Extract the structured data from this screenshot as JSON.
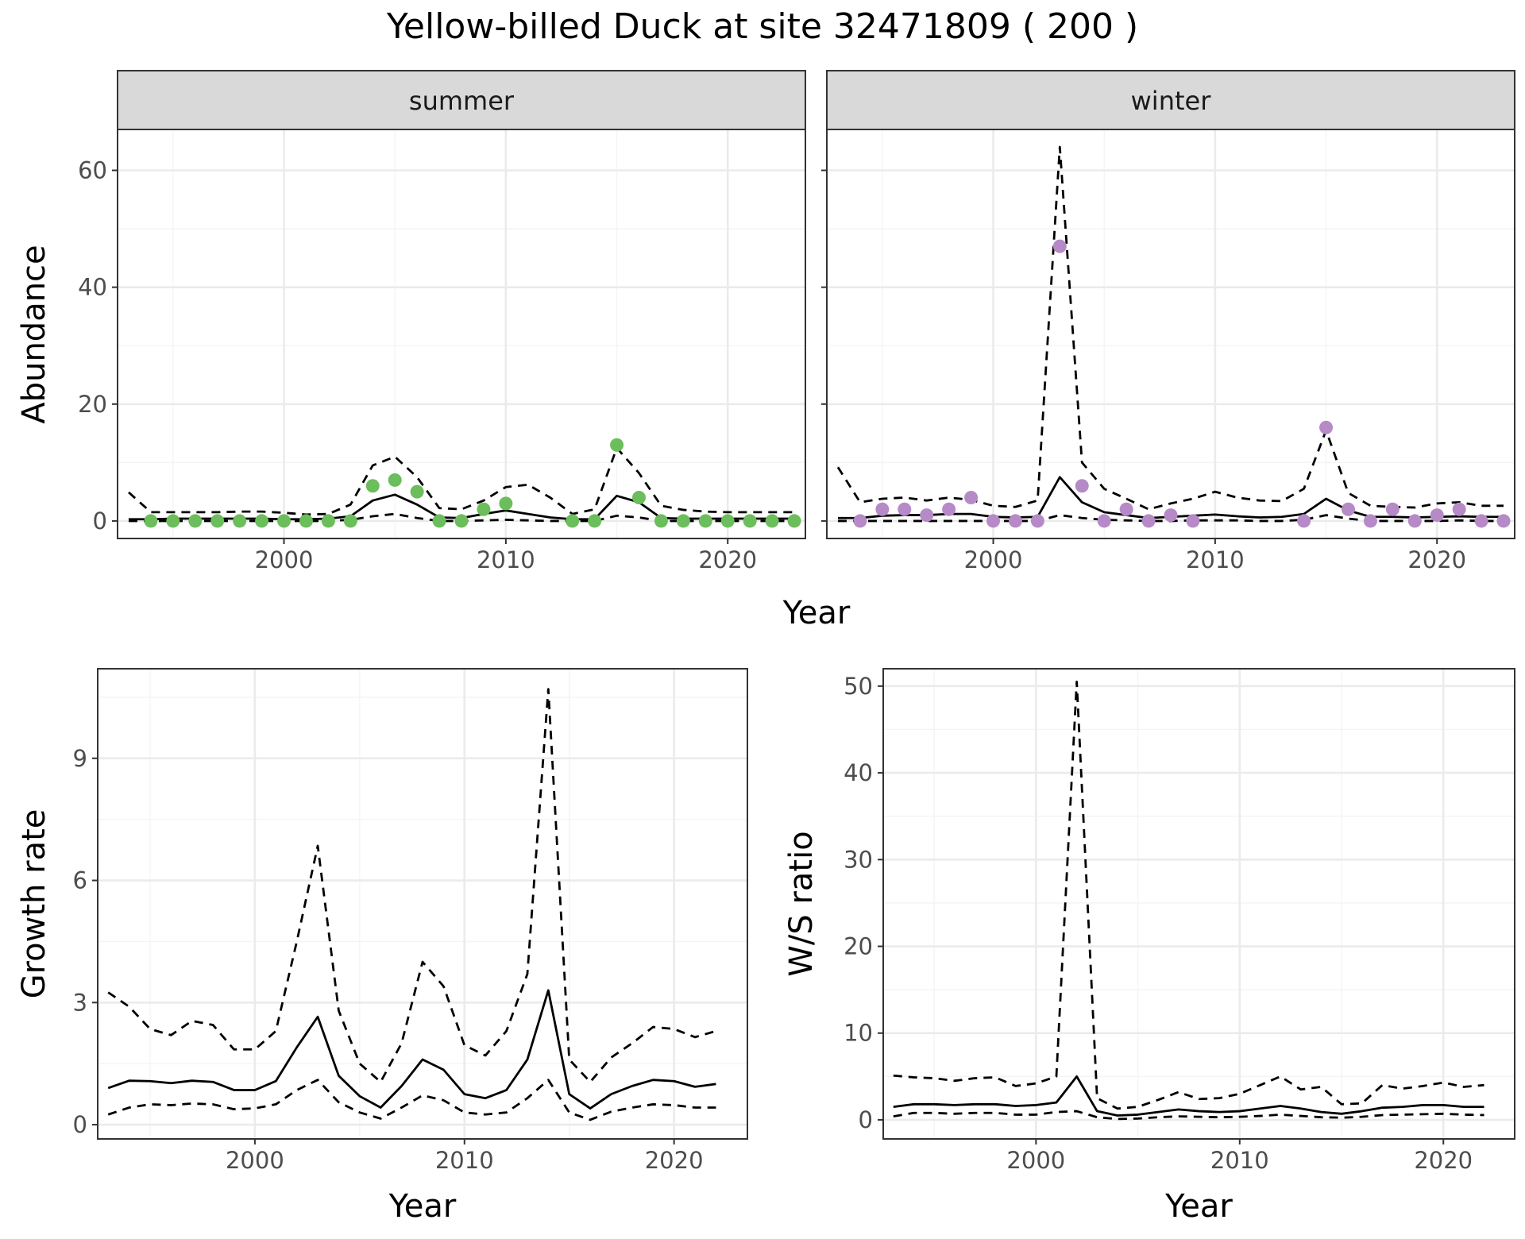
{
  "figure": {
    "title": "Yellow-billed Duck at site 32471809 ( 200 )",
    "colors": {
      "summer_points": "#6cbd5c",
      "winter_points": "#b58ac6",
      "lines": "#000000",
      "strip_fill": "#d9d9d9",
      "grid_major": "#ebebeb",
      "grid_minor": "#f4f4f4"
    }
  },
  "chart_data": [
    {
      "id": "abundance",
      "type": "line",
      "facets": [
        "summer",
        "winter"
      ],
      "xlabel": "Year",
      "ylabel": "Abundance",
      "xlim": [
        1992.5,
        2023.5
      ],
      "ylim": [
        -3,
        67
      ],
      "xticks": [
        2000,
        2010,
        2020
      ],
      "yticks": [
        0,
        20,
        40,
        60
      ],
      "grid": true,
      "panels": [
        {
          "facet": "summer",
          "observed": {
            "x": [
              1994,
              1995,
              1996,
              1997,
              1998,
              1999,
              2000,
              2001,
              2002,
              2003,
              2004,
              2005,
              2006,
              2007,
              2008,
              2009,
              2010,
              2013,
              2014,
              2015,
              2016,
              2017,
              2018,
              2019,
              2020,
              2021,
              2022,
              2023
            ],
            "y": [
              0,
              0,
              0,
              0,
              0,
              0,
              0,
              0,
              0,
              0,
              6,
              7,
              5,
              0,
              0,
              2,
              3,
              0,
              0,
              13,
              4,
              0,
              0,
              0,
              0,
              0,
              0,
              0
            ]
          },
          "estimate": {
            "x": [
              1993,
              1994,
              1995,
              1996,
              1997,
              1998,
              1999,
              2000,
              2001,
              2002,
              2003,
              2004,
              2005,
              2006,
              2007,
              2008,
              2009,
              2010,
              2011,
              2012,
              2013,
              2014,
              2015,
              2016,
              2017,
              2018,
              2019,
              2020,
              2021,
              2022,
              2023
            ],
            "y": [
              0.3,
              0.3,
              0.4,
              0.4,
              0.4,
              0.4,
              0.4,
              0.3,
              0.3,
              0.4,
              0.8,
              3.5,
              4.5,
              2.8,
              0.6,
              0.5,
              1.2,
              1.8,
              1.2,
              0.6,
              0.3,
              0.3,
              4.3,
              3.2,
              0.5,
              0.4,
              0.4,
              0.4,
              0.4,
              0.4,
              0.4
            ]
          },
          "upper": {
            "x": [
              1993,
              1994,
              1995,
              1996,
              1997,
              1998,
              1999,
              2000,
              2001,
              2002,
              2003,
              2004,
              2005,
              2006,
              2007,
              2008,
              2009,
              2010,
              2011,
              2012,
              2013,
              2014,
              2015,
              2016,
              2017,
              2018,
              2019,
              2020,
              2021,
              2022,
              2023
            ],
            "y": [
              4.9,
              1.5,
              1.5,
              1.5,
              1.5,
              1.6,
              1.6,
              1.4,
              1.1,
              1.2,
              2.8,
              9.5,
              11,
              7.5,
              2.2,
              2.0,
              3.5,
              5.8,
              6.2,
              4.0,
              1.2,
              2.0,
              12.5,
              8.2,
              2.6,
              1.9,
              1.6,
              1.5,
              1.5,
              1.5,
              1.5
            ]
          },
          "lower": {
            "x": [
              1993,
              1994,
              1995,
              1996,
              1997,
              1998,
              1999,
              2000,
              2001,
              2002,
              2003,
              2004,
              2005,
              2006,
              2007,
              2008,
              2009,
              2010,
              2011,
              2012,
              2013,
              2014,
              2015,
              2016,
              2017,
              2018,
              2019,
              2020,
              2021,
              2022,
              2023
            ],
            "y": [
              0,
              0,
              0,
              0,
              0,
              0,
              0,
              0,
              0,
              0,
              0.2,
              0.8,
              1.2,
              0.5,
              0,
              0,
              0.1,
              0.2,
              0.1,
              0,
              0,
              0,
              0.9,
              0.6,
              0,
              0,
              0,
              0,
              0,
              0,
              0
            ]
          }
        },
        {
          "facet": "winter",
          "observed": {
            "x": [
              1994,
              1995,
              1996,
              1997,
              1998,
              1999,
              2000,
              2001,
              2002,
              2003,
              2004,
              2005,
              2006,
              2007,
              2008,
              2009,
              2014,
              2015,
              2016,
              2017,
              2018,
              2019,
              2020,
              2021,
              2022,
              2023
            ],
            "y": [
              0,
              2,
              2,
              1,
              2,
              4,
              0,
              0,
              0,
              47,
              6,
              0,
              2,
              0,
              1,
              0,
              0,
              16,
              2,
              0,
              2,
              0,
              1,
              2,
              0,
              0
            ]
          },
          "estimate": {
            "x": [
              1993,
              1994,
              1995,
              1996,
              1997,
              1998,
              1999,
              2000,
              2001,
              2002,
              2003,
              2004,
              2005,
              2006,
              2007,
              2008,
              2009,
              2010,
              2011,
              2012,
              2013,
              2014,
              2015,
              2016,
              2017,
              2018,
              2019,
              2020,
              2021,
              2022,
              2023
            ],
            "y": [
              0.5,
              0.5,
              0.9,
              1.0,
              1.0,
              1.2,
              1.2,
              0.7,
              0.6,
              0.7,
              7.5,
              3.2,
              1.5,
              1.0,
              0.5,
              0.7,
              0.9,
              1.1,
              0.8,
              0.6,
              0.7,
              1.2,
              3.8,
              1.8,
              0.7,
              0.7,
              0.6,
              0.7,
              0.8,
              0.7,
              0.7
            ]
          },
          "upper": {
            "x": [
              1993,
              1994,
              1995,
              1996,
              1997,
              1998,
              1999,
              2000,
              2001,
              2002,
              2003,
              2004,
              2005,
              2006,
              2007,
              2008,
              2009,
              2010,
              2011,
              2012,
              2013,
              2014,
              2015,
              2016,
              2017,
              2018,
              2019,
              2020,
              2021,
              2022,
              2023
            ],
            "y": [
              9.2,
              3.2,
              3.8,
              4.0,
              3.5,
              4.0,
              3.6,
              2.6,
              2.4,
              3.5,
              64,
              10,
              5.5,
              3.8,
              2.0,
              3.0,
              3.8,
              5.0,
              4.0,
              3.5,
              3.4,
              5.5,
              15.5,
              4.8,
              2.6,
              2.4,
              2.3,
              3.0,
              3.2,
              2.6,
              2.6
            ]
          },
          "lower": {
            "x": [
              1993,
              1994,
              1995,
              1996,
              1997,
              1998,
              1999,
              2000,
              2001,
              2002,
              2003,
              2004,
              2005,
              2006,
              2007,
              2008,
              2009,
              2010,
              2011,
              2012,
              2013,
              2014,
              2015,
              2016,
              2017,
              2018,
              2019,
              2020,
              2021,
              2022,
              2023
            ],
            "y": [
              0,
              0,
              0,
              0,
              0,
              0,
              0,
              0,
              0,
              0,
              1.0,
              0.5,
              0.2,
              0.1,
              0,
              0,
              0.1,
              0.1,
              0.1,
              0,
              0,
              0.2,
              1.0,
              0.4,
              0,
              0,
              0,
              0,
              0.1,
              0,
              0
            ]
          }
        }
      ]
    },
    {
      "id": "growth",
      "type": "line",
      "xlabel": "Year",
      "ylabel": "Growth rate",
      "xlim": [
        1992.5,
        2023.5
      ],
      "ylim": [
        -0.35,
        11.2
      ],
      "xticks": [
        2000,
        2010,
        2020
      ],
      "yticks": [
        0,
        3,
        6,
        9
      ],
      "grid": true,
      "estimate": {
        "x": [
          1993,
          1994,
          1995,
          1996,
          1997,
          1998,
          1999,
          2000,
          2001,
          2002,
          2003,
          2004,
          2005,
          2006,
          2007,
          2008,
          2009,
          2010,
          2011,
          2012,
          2013,
          2014,
          2015,
          2016,
          2017,
          2018,
          2019,
          2020,
          2021,
          2022
        ],
        "y": [
          0.9,
          1.08,
          1.07,
          1.02,
          1.08,
          1.05,
          0.85,
          0.85,
          1.07,
          1.9,
          2.65,
          1.2,
          0.7,
          0.42,
          0.95,
          1.6,
          1.35,
          0.75,
          0.65,
          0.85,
          1.6,
          3.3,
          0.75,
          0.4,
          0.75,
          0.95,
          1.1,
          1.07,
          0.93,
          1.0
        ]
      },
      "upper": {
        "x": [
          1993,
          1994,
          1995,
          1996,
          1997,
          1998,
          1999,
          2000,
          2001,
          2002,
          2003,
          2004,
          2005,
          2006,
          2007,
          2008,
          2009,
          2010,
          2011,
          2012,
          2013,
          2014,
          2015,
          2016,
          2017,
          2018,
          2019,
          2020,
          2021,
          2022
        ],
        "y": [
          3.25,
          2.9,
          2.35,
          2.2,
          2.55,
          2.45,
          1.85,
          1.85,
          2.3,
          4.5,
          6.85,
          2.8,
          1.5,
          1.05,
          2.0,
          4.0,
          3.4,
          1.95,
          1.7,
          2.3,
          3.7,
          10.7,
          1.6,
          1.05,
          1.65,
          2.0,
          2.4,
          2.35,
          2.15,
          2.3
        ]
      },
      "lower": {
        "x": [
          1993,
          1994,
          1995,
          1996,
          1997,
          1998,
          1999,
          2000,
          2001,
          2002,
          2003,
          2004,
          2005,
          2006,
          2007,
          2008,
          2009,
          2010,
          2011,
          2012,
          2013,
          2014,
          2015,
          2016,
          2017,
          2018,
          2019,
          2020,
          2021,
          2022
        ],
        "y": [
          0.25,
          0.42,
          0.5,
          0.48,
          0.52,
          0.5,
          0.38,
          0.4,
          0.5,
          0.85,
          1.1,
          0.55,
          0.3,
          0.15,
          0.42,
          0.72,
          0.6,
          0.3,
          0.25,
          0.3,
          0.65,
          1.1,
          0.3,
          0.12,
          0.32,
          0.42,
          0.5,
          0.48,
          0.42,
          0.42
        ]
      }
    },
    {
      "id": "ws_ratio",
      "type": "line",
      "xlabel": "Year",
      "ylabel": "W/S ratio",
      "xlim": [
        1992.5,
        2023.5
      ],
      "ylim": [
        -2.2,
        52
      ],
      "xticks": [
        2000,
        2010,
        2020
      ],
      "yticks": [
        0,
        10,
        20,
        30,
        40,
        50
      ],
      "grid": true,
      "estimate": {
        "x": [
          1993,
          1994,
          1995,
          1996,
          1997,
          1998,
          1999,
          2000,
          2001,
          2002,
          2003,
          2004,
          2005,
          2006,
          2007,
          2008,
          2009,
          2010,
          2011,
          2012,
          2013,
          2014,
          2015,
          2016,
          2017,
          2018,
          2019,
          2020,
          2021,
          2022
        ],
        "y": [
          1.5,
          1.8,
          1.8,
          1.7,
          1.8,
          1.8,
          1.6,
          1.7,
          2.0,
          5.0,
          1.0,
          0.5,
          0.6,
          0.9,
          1.2,
          1.0,
          0.9,
          1.0,
          1.3,
          1.6,
          1.3,
          0.9,
          0.7,
          1.0,
          1.4,
          1.5,
          1.7,
          1.7,
          1.5,
          1.5
        ]
      },
      "upper": {
        "x": [
          1993,
          1994,
          1995,
          1996,
          1997,
          1998,
          1999,
          2000,
          2001,
          2002,
          2003,
          2004,
          2005,
          2006,
          2007,
          2008,
          2009,
          2010,
          2011,
          2012,
          2013,
          2014,
          2015,
          2016,
          2017,
          2018,
          2019,
          2020,
          2021,
          2022
        ],
        "y": [
          5.1,
          4.9,
          4.8,
          4.5,
          4.8,
          4.9,
          3.9,
          4.2,
          5.0,
          50.5,
          2.5,
          1.3,
          1.5,
          2.3,
          3.2,
          2.4,
          2.5,
          3.0,
          4.0,
          5.0,
          3.5,
          3.8,
          1.8,
          1.9,
          4.0,
          3.6,
          3.9,
          4.3,
          3.8,
          4.0
        ]
      },
      "lower": {
        "x": [
          1993,
          1994,
          1995,
          1996,
          1997,
          1998,
          1999,
          2000,
          2001,
          2002,
          2003,
          2004,
          2005,
          2006,
          2007,
          2008,
          2009,
          2010,
          2011,
          2012,
          2013,
          2014,
          2015,
          2016,
          2017,
          2018,
          2019,
          2020,
          2021,
          2022
        ],
        "y": [
          0.4,
          0.8,
          0.8,
          0.7,
          0.8,
          0.8,
          0.6,
          0.6,
          0.9,
          1.0,
          0.3,
          0.1,
          0.15,
          0.3,
          0.4,
          0.35,
          0.3,
          0.35,
          0.45,
          0.6,
          0.45,
          0.3,
          0.25,
          0.35,
          0.55,
          0.6,
          0.65,
          0.7,
          0.6,
          0.55
        ]
      }
    }
  ]
}
